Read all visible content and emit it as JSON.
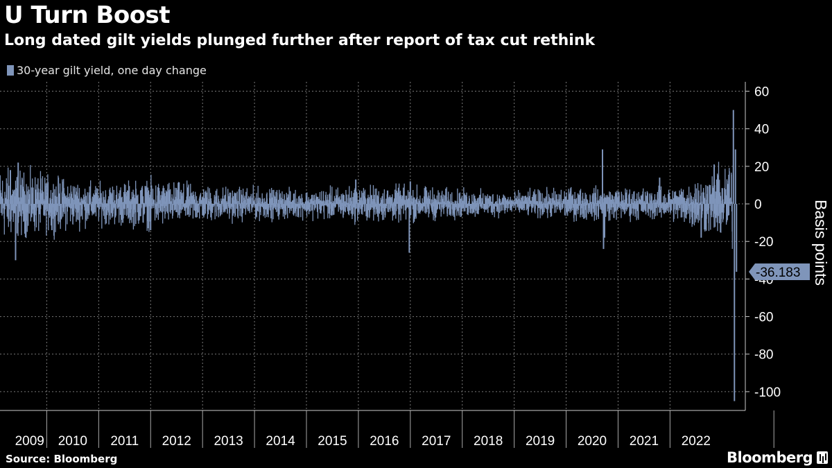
{
  "header": {
    "title": "U Turn Boost",
    "subtitle": "Long dated gilt yields plunged further after report of tax cut rethink"
  },
  "footer": {
    "source": "Source: Bloomberg",
    "brand": "Bloomberg"
  },
  "colors": {
    "background": "#000000",
    "series": "#7f95ba",
    "grid": "#7a7a7a",
    "text": "#ffffff"
  },
  "chart_data": {
    "type": "bar",
    "title": "U Turn Boost",
    "subtitle": "Long dated gilt yields plunged further after report of tax cut rethink",
    "ylabel": "Basis points",
    "xlabel": "",
    "ylim": [
      -110,
      65
    ],
    "yticks": [
      60,
      40,
      20,
      0,
      -20,
      -40,
      -60,
      -80,
      -100
    ],
    "ytick_labels": [
      "60",
      "40",
      "20",
      "0",
      "-20",
      "-40",
      "-60",
      "-80",
      "-100"
    ],
    "xticks": [
      "2009",
      "2010",
      "2011",
      "2012",
      "2013",
      "2014",
      "2015",
      "2016",
      "2017",
      "2018",
      "2019",
      "2020",
      "2021",
      "2022"
    ],
    "xlim": [
      2008.6,
      2022.95
    ],
    "grid": true,
    "legend": {
      "position": "top-left",
      "entries": [
        "30-year gilt yield, one day change"
      ]
    },
    "series": [
      {
        "name": "30-year gilt yield, one day change",
        "color": "#7f95ba",
        "typical_daily_amplitude": [
          {
            "year": 2008.6,
            "amp": 9
          },
          {
            "year": 2009.5,
            "amp": 7
          },
          {
            "year": 2010.5,
            "amp": 5
          },
          {
            "year": 2011.5,
            "amp": 6
          },
          {
            "year": 2012.5,
            "amp": 4.5
          },
          {
            "year": 2013.5,
            "amp": 4
          },
          {
            "year": 2014.5,
            "amp": 3.5
          },
          {
            "year": 2015.5,
            "amp": 4.5
          },
          {
            "year": 2016.5,
            "amp": 4.5
          },
          {
            "year": 2017.5,
            "amp": 3.5
          },
          {
            "year": 2018.5,
            "amp": 3
          },
          {
            "year": 2019.5,
            "amp": 4
          },
          {
            "year": 2020.5,
            "amp": 4
          },
          {
            "year": 2021.5,
            "amp": 4
          },
          {
            "year": 2022.3,
            "amp": 8
          },
          {
            "year": 2022.95,
            "amp": 12
          }
        ],
        "notable_points": [
          {
            "x": 2008.95,
            "y": 22
          },
          {
            "x": 2008.8,
            "y": 18
          },
          {
            "x": 2008.9,
            "y": -30
          },
          {
            "x": 2009.6,
            "y": -14
          },
          {
            "x": 2011.5,
            "y": -14
          },
          {
            "x": 2015.45,
            "y": 13
          },
          {
            "x": 2016.48,
            "y": -26
          },
          {
            "x": 2016.5,
            "y": 12
          },
          {
            "x": 2020.2,
            "y": 29
          },
          {
            "x": 2020.22,
            "y": -24
          },
          {
            "x": 2020.24,
            "y": -18
          },
          {
            "x": 2021.3,
            "y": 14
          },
          {
            "x": 2022.1,
            "y": -18
          },
          {
            "x": 2022.35,
            "y": 21
          },
          {
            "x": 2022.4,
            "y": 13
          },
          {
            "x": 2022.72,
            "y": 50
          },
          {
            "x": 2022.74,
            "y": -105
          },
          {
            "x": 2022.76,
            "y": 29
          },
          {
            "x": 2022.78,
            "y": -36.183
          }
        ],
        "last_value": -36.183,
        "last_value_label": "-36.183"
      }
    ]
  }
}
